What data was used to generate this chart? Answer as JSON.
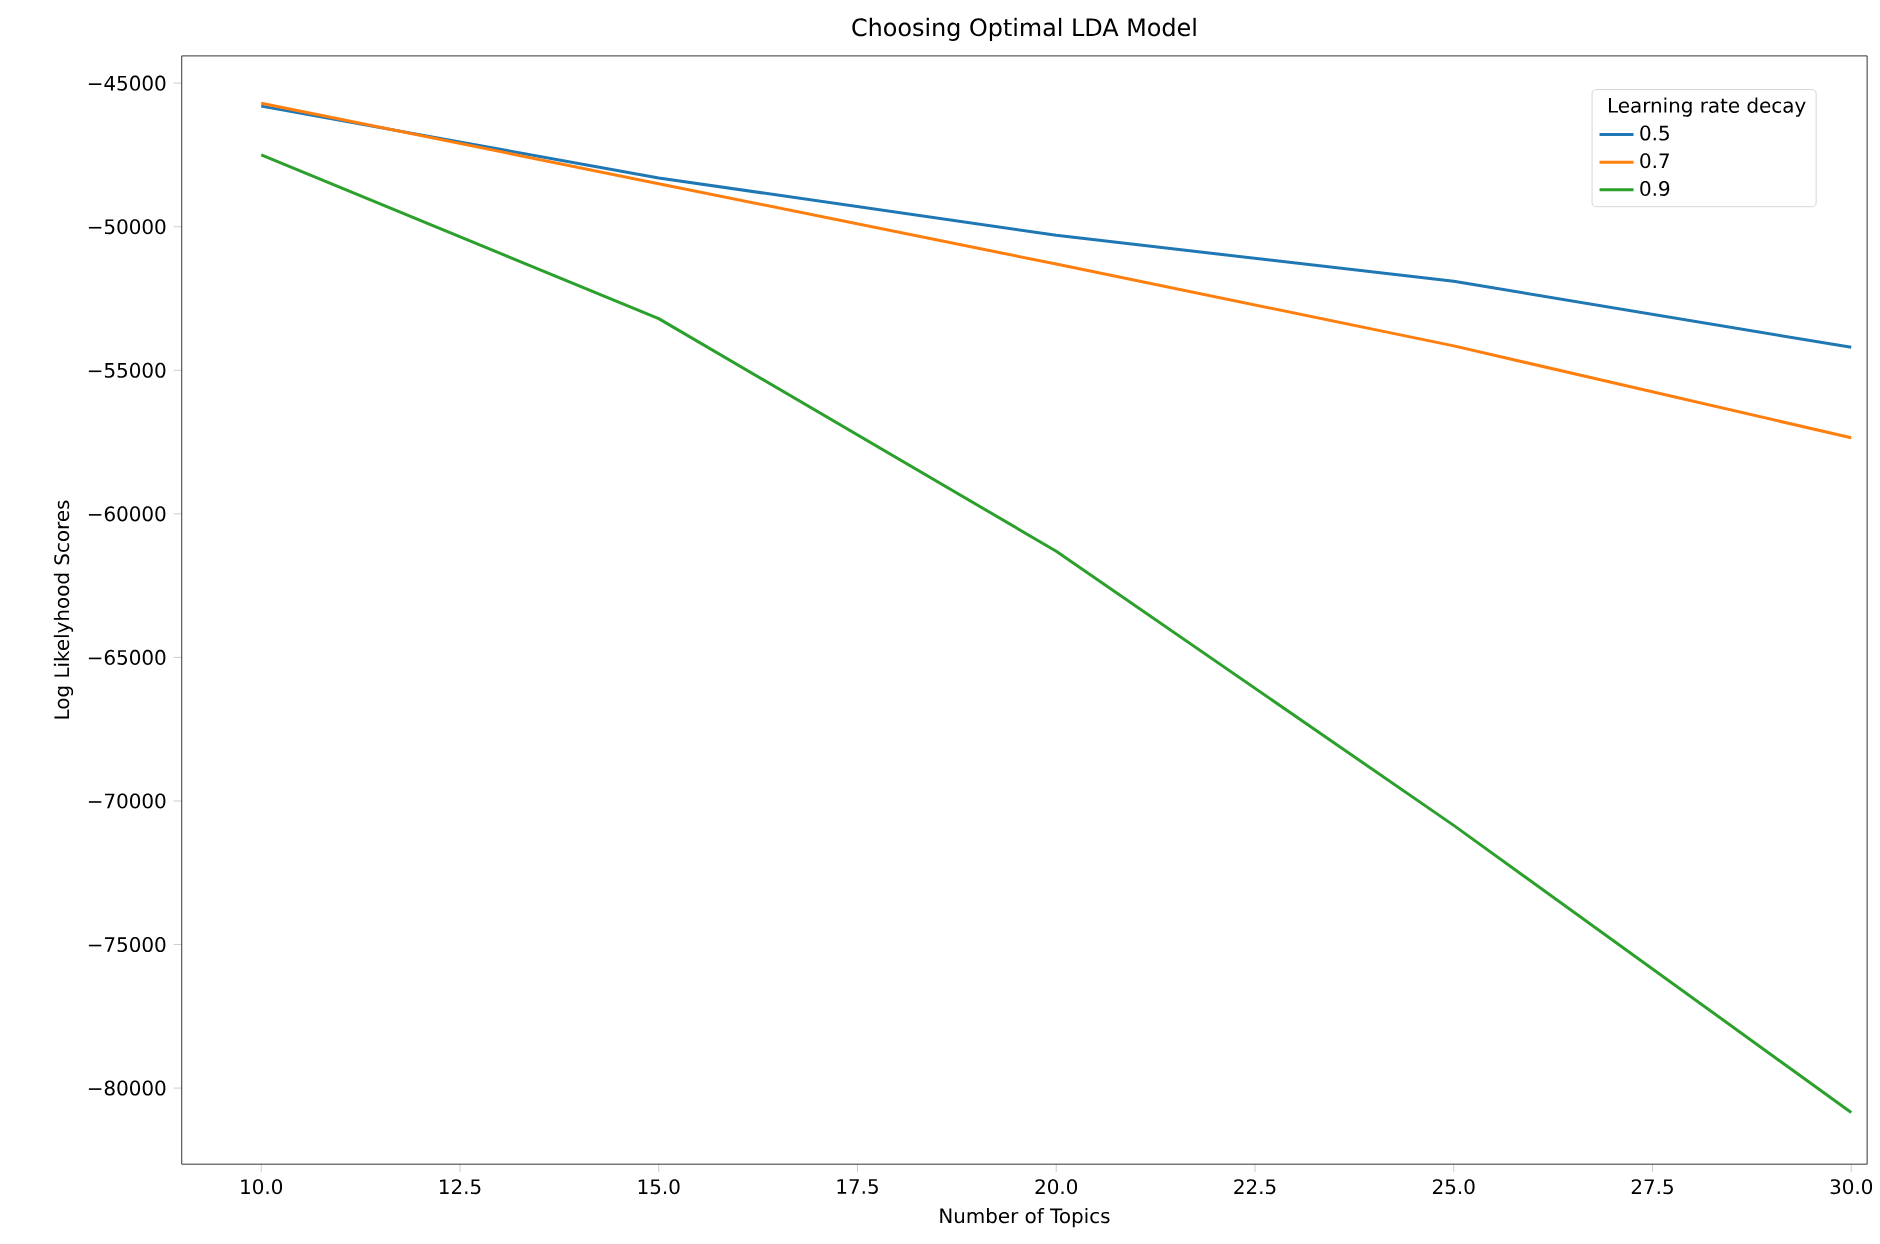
{
  "chart_data": {
    "type": "line",
    "title": "Choosing Optimal LDA Model",
    "xlabel": "Number of Topics",
    "ylabel": "Log Likelyhood Scores",
    "legend_title": "Learning rate decay",
    "legend": "top right",
    "grid": false,
    "marker": "none",
    "line_style": "solid",
    "x": [
      10,
      15,
      20,
      25,
      30
    ],
    "series": [
      {
        "name": "0.5",
        "color": "#1f77b4",
        "values": [
          -45800,
          -48300,
          -50300,
          -51900,
          -54200
        ]
      },
      {
        "name": "0.7",
        "color": "#ff7f0e",
        "values": [
          -45700,
          -48500,
          -51300,
          -54150,
          -57350
        ]
      },
      {
        "name": "0.9",
        "color": "#2ca02c",
        "values": [
          -47500,
          -53200,
          -61300,
          -70850,
          -80850
        ]
      }
    ],
    "xlim": [
      9,
      30.2
    ],
    "ylim": [
      -82650,
      -44050
    ],
    "xticks": [
      {
        "value": 10,
        "label": "10.0"
      },
      {
        "value": 12.5,
        "label": "12.5"
      },
      {
        "value": 15,
        "label": "15.0"
      },
      {
        "value": 17.5,
        "label": "17.5"
      },
      {
        "value": 20,
        "label": "20.0"
      },
      {
        "value": 22.5,
        "label": "22.5"
      },
      {
        "value": 25,
        "label": "25.0"
      },
      {
        "value": 27.5,
        "label": "27.5"
      },
      {
        "value": 30,
        "label": "30.0"
      }
    ],
    "yticks": [
      {
        "value": -80000,
        "label": "−80000"
      },
      {
        "value": -75000,
        "label": "−75000"
      },
      {
        "value": -70000,
        "label": "−70000"
      },
      {
        "value": -65000,
        "label": "−65000"
      },
      {
        "value": -60000,
        "label": "−60000"
      },
      {
        "value": -55000,
        "label": "−55000"
      },
      {
        "value": -50000,
        "label": "−50000"
      },
      {
        "value": -45000,
        "label": "−45000"
      }
    ]
  }
}
